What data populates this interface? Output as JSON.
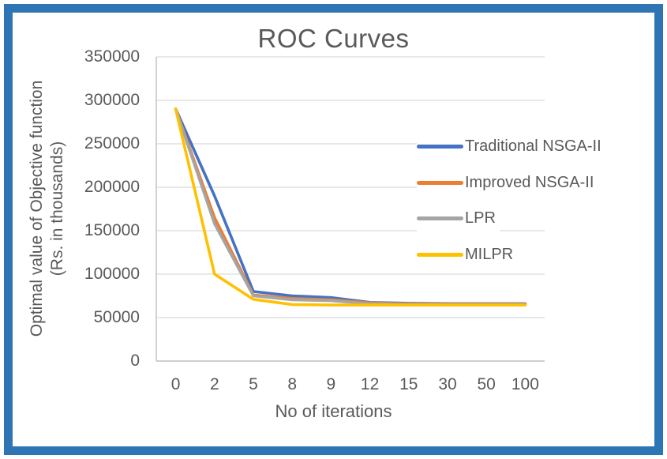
{
  "window": {
    "background": "#FFFFFF",
    "frame_border_color": "#2E75B6"
  },
  "colors": {
    "text": "#595959",
    "gridline": "#D9D9D9",
    "axis_line": "#BFBFBF"
  },
  "chart_data": {
    "type": "line",
    "title": "ROC Curves",
    "xlabel": "No of iterations",
    "ylabel": "Optimal value of Objective function (Rs. in thousands)",
    "ylabel_lines": [
      "Optimal value of Objective function",
      "(Rs. in thousands)"
    ],
    "categories": [
      "0",
      "2",
      "5",
      "8",
      "9",
      "12",
      "15",
      "30",
      "50",
      "100"
    ],
    "y_ticks": [
      350000,
      300000,
      250000,
      200000,
      150000,
      100000,
      50000,
      0
    ],
    "ylim": [
      0,
      350000
    ],
    "grid": "horizontal-only",
    "legend_position": "inside-right",
    "series": [
      {
        "name": "Traditional NSGA-II",
        "color": "#4472C4",
        "values": [
          290000,
          190000,
          80000,
          75000,
          73000,
          67500,
          66500,
          66000,
          66000,
          66000
        ]
      },
      {
        "name": "Improved NSGA-II",
        "color": "#ED7D31",
        "values": [
          290000,
          165000,
          76000,
          72000,
          70500,
          67000,
          65800,
          65500,
          65500,
          65500
        ]
      },
      {
        "name": "LPR",
        "color": "#A5A5A5",
        "values": [
          290000,
          158000,
          75000,
          70500,
          69500,
          66000,
          65200,
          65000,
          65000,
          65000
        ]
      },
      {
        "name": "MILPR",
        "color": "#FFC000",
        "values": [
          290000,
          100000,
          71000,
          65000,
          64500,
          64500,
          64500,
          64500,
          64500,
          64500
        ]
      }
    ]
  }
}
